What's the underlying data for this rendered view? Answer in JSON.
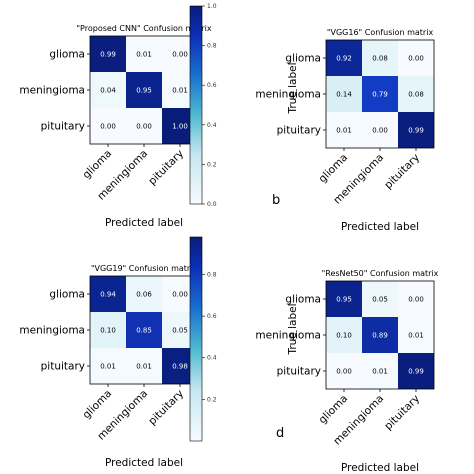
{
  "chart_data": [
    {
      "type": "heatmap",
      "title": "\"Proposed CNN\" Confusion matrix",
      "rows": [
        "glioma",
        "meningioma",
        "pituitary"
      ],
      "cols": [
        "glioma",
        "meningioma",
        "pituitary"
      ],
      "values": [
        [
          0.99,
          0.01,
          0.0
        ],
        [
          0.04,
          0.95,
          0.01
        ],
        [
          0.0,
          0.0,
          1.0
        ]
      ],
      "labels": [
        [
          "0.99",
          "0.01",
          "0.00"
        ],
        [
          "0.04",
          "0.95",
          "0.01"
        ],
        [
          "0.00",
          "0.00",
          "1.00"
        ]
      ],
      "xlabel": "Predicted label",
      "ylabel": "",
      "panel_letter": "",
      "colorbar": true,
      "colorbar_range": [
        0,
        1.0
      ],
      "colorbar_ticks": [
        "0.0",
        "0.2",
        "0.4",
        "0.6",
        "0.8",
        "1.0"
      ]
    },
    {
      "type": "heatmap",
      "title": "\"VGG16\" Confusion matrix",
      "rows": [
        "glioma",
        "meningioma",
        "pituitary"
      ],
      "cols": [
        "glioma",
        "meningioma",
        "pituitary"
      ],
      "values": [
        [
          0.92,
          0.08,
          0.0
        ],
        [
          0.14,
          0.79,
          0.08
        ],
        [
          0.01,
          0.0,
          0.99
        ]
      ],
      "labels": [
        [
          "0.92",
          "0.08",
          "0.00"
        ],
        [
          "0.14",
          "0.79",
          "0.08"
        ],
        [
          "0.01",
          "0.00",
          "0.99"
        ]
      ],
      "xlabel": "Predicted label",
      "ylabel": "True label",
      "panel_letter": "b",
      "colorbar": false
    },
    {
      "type": "heatmap",
      "title": "\"VGG19\" Confusion matrix",
      "rows": [
        "glioma",
        "meningioma",
        "pituitary"
      ],
      "cols": [
        "glioma",
        "meningioma",
        "pituitary"
      ],
      "values": [
        [
          0.94,
          0.06,
          0.0
        ],
        [
          0.1,
          0.85,
          0.05
        ],
        [
          0.01,
          0.01,
          0.98
        ]
      ],
      "labels": [
        [
          "0.94",
          "0.06",
          "0.00"
        ],
        [
          "0.10",
          "0.85",
          "0.05"
        ],
        [
          "0.01",
          "0.01",
          "0.98"
        ]
      ],
      "xlabel": "Predicted label",
      "ylabel": "",
      "panel_letter": "",
      "colorbar": true,
      "colorbar_range": [
        0,
        0.98
      ],
      "colorbar_ticks": [
        "0.2",
        "0.4",
        "0.6",
        "0.8"
      ]
    },
    {
      "type": "heatmap",
      "title": "\"ResNet50\" Confusion matrix",
      "rows": [
        "glioma",
        "meningioma",
        "pituitary"
      ],
      "cols": [
        "glioma",
        "meningioma",
        "pituitary"
      ],
      "values": [
        [
          0.95,
          0.05,
          0.0
        ],
        [
          0.1,
          0.89,
          0.01
        ],
        [
          0.0,
          0.01,
          0.99
        ]
      ],
      "labels": [
        [
          "0.95",
          "0.05",
          "0.00"
        ],
        [
          "0.10",
          "0.89",
          "0.01"
        ],
        [
          "0.00",
          "0.01",
          "0.99"
        ]
      ],
      "xlabel": "Predicted label",
      "ylabel": "True label",
      "panel_letter": "d",
      "colorbar": false
    }
  ]
}
